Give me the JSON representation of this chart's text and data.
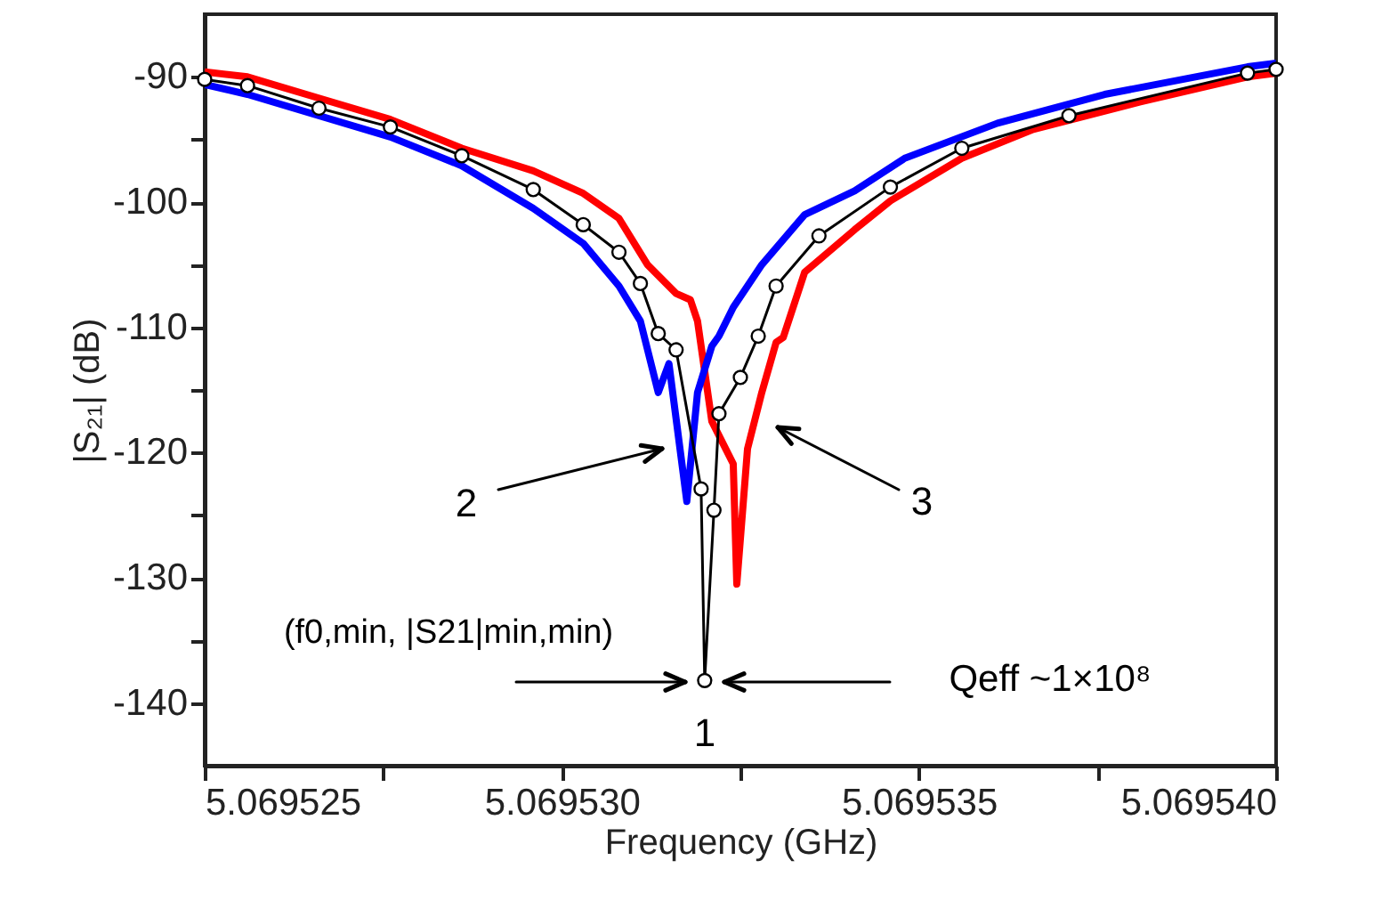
{
  "chart_data": {
    "type": "line",
    "xlabel": "Frequency (GHz)",
    "ylabel": "|S₂₁| (dB)",
    "xlim": [
      5.069525,
      5.06954
    ],
    "ylim": [
      -145,
      -85
    ],
    "xticks": [
      {
        "value": 5.069525,
        "label": "5.069525"
      },
      {
        "value": 5.0695275,
        "label": null
      },
      {
        "value": 5.06953,
        "label": "5.069530"
      },
      {
        "value": 5.0695325,
        "label": null
      },
      {
        "value": 5.069535,
        "label": "5.069535"
      },
      {
        "value": 5.0695375,
        "label": null
      },
      {
        "value": 5.06954,
        "label": "5.069540"
      }
    ],
    "yticks": [
      -90,
      {
        "value": -95,
        "label": null
      },
      -100,
      {
        "value": -105,
        "label": null
      },
      -110,
      {
        "value": -115,
        "label": null
      },
      -120,
      {
        "value": -125,
        "label": null
      },
      -130,
      {
        "value": -135,
        "label": null
      },
      -140
    ],
    "grid": false,
    "line_style": "solid",
    "series": [
      {
        "color": "#ff0000",
        "marker": "none",
        "x": [
          5.069525,
          5.0695256,
          5.0695266,
          5.0695276,
          5.0695286,
          5.0695296,
          5.0695303,
          5.0695308,
          5.0695312,
          5.0695316,
          5.0695318,
          5.0695319,
          5.0695321,
          5.0695324,
          5.06953245,
          5.0695326,
          5.0695328,
          5.069533,
          5.0695331,
          5.0695334,
          5.0695341,
          5.0695346,
          5.0695356,
          5.0695366,
          5.0695381,
          5.0695396,
          5.06954
        ],
        "values": [
          -89.6,
          -90.0,
          -91.7,
          -93.4,
          -95.7,
          -97.5,
          -99.3,
          -101.3,
          -105.0,
          -107.3,
          -107.8,
          -109.5,
          -117.5,
          -120.9,
          -130.5,
          -119.7,
          -115.2,
          -111.2,
          -110.8,
          -105.6,
          -102.2,
          -99.9,
          -96.5,
          -94.2,
          -92.0,
          -90.0,
          -89.7
        ]
      },
      {
        "color": "#0000ff",
        "marker": "none",
        "x": [
          5.069525,
          5.0695256,
          5.0695276,
          5.0695286,
          5.0695296,
          5.0695303,
          5.0695308,
          5.0695311,
          5.06953135,
          5.0695315,
          5.06953175,
          5.0695319,
          5.0695321,
          5.0695322,
          5.0695324,
          5.0695328,
          5.0695334,
          5.0695341,
          5.0695348,
          5.0695361,
          5.0695376,
          5.0695396,
          5.06954
        ],
        "values": [
          -90.6,
          -91.4,
          -94.8,
          -97.1,
          -100.5,
          -103.3,
          -106.7,
          -109.5,
          -115.2,
          -112.9,
          -123.9,
          -115.2,
          -111.5,
          -110.7,
          -108.4,
          -105.0,
          -101.0,
          -99.1,
          -96.5,
          -93.7,
          -91.4,
          -89.2,
          -88.9
        ]
      },
      {
        "color": "#000000",
        "marker": "circle",
        "x": [
          5.069525,
          5.0695256,
          5.0695266,
          5.0695276,
          5.0695286,
          5.0695296,
          5.0695303,
          5.0695308,
          5.0695311,
          5.06953135,
          5.0695316,
          5.06953195,
          5.069532,
          5.06953213,
          5.0695322,
          5.0695325,
          5.06953275,
          5.069533,
          5.0695336,
          5.0695346,
          5.0695356,
          5.0695371,
          5.0695396,
          5.06954
        ],
        "values": [
          -90.2,
          -90.7,
          -92.5,
          -94.0,
          -96.3,
          -99.0,
          -101.8,
          -104.0,
          -106.5,
          -110.5,
          -111.8,
          -122.9,
          -138.2,
          -124.6,
          -116.9,
          -114.0,
          -110.7,
          -106.7,
          -102.7,
          -98.8,
          -95.7,
          -93.1,
          -89.7,
          -89.4
        ]
      }
    ],
    "annotations": [
      "1",
      "2",
      "3",
      "(f0,min, |S21|min,min)",
      "Qeff ~1×10⁸"
    ]
  }
}
